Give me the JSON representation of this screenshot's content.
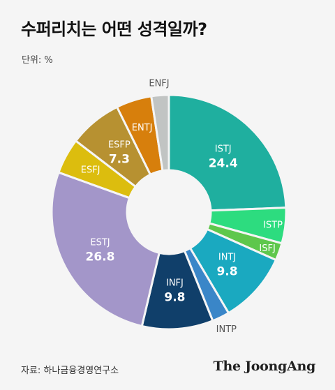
{
  "title": "수퍼리치는 어떤 성격일까?",
  "unit_label": "단위: %",
  "source": "자료: 하나금융경영연구소",
  "logo": "The JoongAng",
  "chart_data": {
    "type": "pie",
    "variant": "donut",
    "title": "수퍼리치는 어떤 성격일까?",
    "unit": "%",
    "start_angle_deg": 0,
    "direction": "clockwise",
    "slices": [
      {
        "label": "ISTJ",
        "value": 24.4,
        "value_label": "24.4",
        "color": "#1faf9f"
      },
      {
        "label": "ISTP",
        "value": 4.9,
        "value_label": "",
        "color": "#2ddc7f"
      },
      {
        "label": "ISFJ",
        "value": 2.4,
        "value_label": "",
        "color": "#5ec74c"
      },
      {
        "label": "INTJ",
        "value": 9.8,
        "value_label": "9.8",
        "color": "#1aa9c0"
      },
      {
        "label": "INTP",
        "value": 2.4,
        "value_label": "",
        "color": "#3a86c8"
      },
      {
        "label": "INFJ",
        "value": 9.8,
        "value_label": "9.8",
        "color": "#103f6a"
      },
      {
        "label": "ESTJ",
        "value": 26.8,
        "value_label": "26.8",
        "color": "#a396c9"
      },
      {
        "label": "ESFJ",
        "value": 4.9,
        "value_label": "",
        "color": "#dcbd0e"
      },
      {
        "label": "ESFP",
        "value": 7.3,
        "value_label": "7.3",
        "color": "#b79131"
      },
      {
        "label": "ENTJ",
        "value": 4.9,
        "value_label": "",
        "color": "#d77f0c"
      },
      {
        "label": "ENFJ",
        "value": 2.4,
        "value_label": "",
        "color": "#c1c4c3"
      }
    ]
  }
}
